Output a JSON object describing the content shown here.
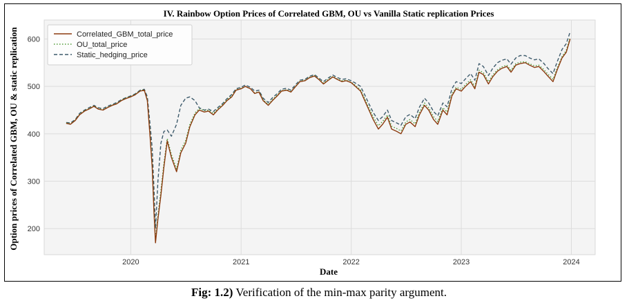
{
  "caption": {
    "label": "Fig: 1.2)",
    "text": "Verification of the min-max parity argument."
  },
  "chart_data": {
    "type": "line",
    "title": "IV. Rainbow Option Prices of Correlated GBM, OU vs Vanilla Static replication Prices",
    "xlabel": "Date",
    "ylabel": "Option prices of Correlated GBM, OU & static replication",
    "x_ticks": [
      "2020",
      "2021",
      "2022",
      "2023",
      "2024"
    ],
    "y_ticks": [
      200,
      300,
      400,
      500,
      600
    ],
    "xlim": [
      "2019-03-20",
      "2024-03-20"
    ],
    "ylim": [
      145,
      640
    ],
    "grid": true,
    "legend_position": "top-left",
    "x": [
      "2019-06-01",
      "2019-06-15",
      "2019-07-01",
      "2019-07-15",
      "2019-08-01",
      "2019-08-15",
      "2019-09-01",
      "2019-09-15",
      "2019-10-01",
      "2019-10-15",
      "2019-11-01",
      "2019-11-15",
      "2019-12-01",
      "2019-12-15",
      "2020-01-01",
      "2020-01-15",
      "2020-02-01",
      "2020-02-15",
      "2020-02-25",
      "2020-03-05",
      "2020-03-12",
      "2020-03-18",
      "2020-03-23",
      "2020-03-31",
      "2020-04-10",
      "2020-04-20",
      "2020-05-01",
      "2020-05-15",
      "2020-06-01",
      "2020-06-15",
      "2020-07-01",
      "2020-07-15",
      "2020-08-01",
      "2020-08-15",
      "2020-09-01",
      "2020-09-15",
      "2020-10-01",
      "2020-10-15",
      "2020-11-01",
      "2020-11-15",
      "2020-12-01",
      "2020-12-15",
      "2021-01-01",
      "2021-01-15",
      "2021-02-01",
      "2021-02-15",
      "2021-03-01",
      "2021-03-15",
      "2021-04-01",
      "2021-04-15",
      "2021-05-01",
      "2021-05-15",
      "2021-06-01",
      "2021-06-15",
      "2021-07-01",
      "2021-07-15",
      "2021-08-01",
      "2021-08-15",
      "2021-09-01",
      "2021-09-15",
      "2021-10-01",
      "2021-10-15",
      "2021-11-01",
      "2021-11-15",
      "2021-12-01",
      "2021-12-15",
      "2022-01-01",
      "2022-01-15",
      "2022-02-01",
      "2022-02-15",
      "2022-03-01",
      "2022-03-15",
      "2022-04-01",
      "2022-04-15",
      "2022-05-01",
      "2022-05-15",
      "2022-06-01",
      "2022-06-15",
      "2022-07-01",
      "2022-07-15",
      "2022-08-01",
      "2022-08-15",
      "2022-09-01",
      "2022-09-15",
      "2022-10-01",
      "2022-10-15",
      "2022-11-01",
      "2022-11-15",
      "2022-12-01",
      "2022-12-15",
      "2023-01-01",
      "2023-01-15",
      "2023-02-01",
      "2023-02-15",
      "2023-03-01",
      "2023-03-15",
      "2023-04-01",
      "2023-04-15",
      "2023-05-01",
      "2023-05-15",
      "2023-06-01",
      "2023-06-15",
      "2023-07-01",
      "2023-07-15",
      "2023-08-01",
      "2023-08-15",
      "2023-09-01",
      "2023-09-15",
      "2023-10-01",
      "2023-10-15",
      "2023-11-01",
      "2023-11-15",
      "2023-12-01",
      "2023-12-15",
      "2023-12-28"
    ],
    "series": [
      {
        "name": "Correlated_GBM_total_price",
        "color": "#8b3a0e",
        "dash": "solid",
        "values": [
          422,
          420,
          428,
          440,
          448,
          452,
          458,
          452,
          450,
          455,
          460,
          463,
          470,
          474,
          478,
          482,
          490,
          492,
          470,
          395,
          330,
          235,
          170,
          220,
          270,
          330,
          385,
          350,
          320,
          360,
          380,
          415,
          440,
          450,
          446,
          448,
          440,
          450,
          460,
          470,
          478,
          492,
          495,
          500,
          495,
          485,
          488,
          470,
          460,
          470,
          480,
          490,
          492,
          488,
          500,
          510,
          512,
          518,
          522,
          515,
          505,
          512,
          520,
          515,
          510,
          512,
          508,
          500,
          490,
          470,
          450,
          430,
          410,
          420,
          435,
          410,
          405,
          400,
          420,
          425,
          415,
          440,
          460,
          450,
          430,
          420,
          450,
          440,
          480,
          495,
          490,
          500,
          510,
          495,
          530,
          525,
          505,
          520,
          532,
          538,
          542,
          530,
          545,
          548,
          550,
          545,
          540,
          542,
          532,
          522,
          510,
          535,
          560,
          572,
          600
        ]
      },
      {
        "name": "OU_total_price",
        "color": "#4e9a34",
        "dash": "dotted",
        "values": [
          423,
          421,
          429,
          441,
          449,
          453,
          459,
          453,
          451,
          456,
          461,
          464,
          471,
          475,
          479,
          483,
          491,
          493,
          472,
          400,
          338,
          245,
          175,
          228,
          280,
          338,
          390,
          356,
          326,
          366,
          386,
          420,
          444,
          453,
          449,
          450,
          443,
          452,
          462,
          472,
          480,
          493,
          496,
          500,
          495,
          486,
          489,
          472,
          462,
          472,
          482,
          491,
          493,
          489,
          501,
          511,
          513,
          519,
          523,
          516,
          507,
          514,
          521,
          516,
          512,
          513,
          509,
          502,
          493,
          474,
          455,
          436,
          417,
          426,
          440,
          416,
          411,
          406,
          425,
          430,
          421,
          445,
          465,
          455,
          436,
          426,
          455,
          446,
          484,
          498,
          494,
          504,
          514,
          500,
          534,
          529,
          510,
          524,
          535,
          541,
          545,
          534,
          548,
          551,
          552,
          548,
          543,
          545,
          536,
          526,
          515,
          539,
          563,
          576,
          603
        ]
      },
      {
        "name": "Static_hedging_price",
        "color": "#3d5a6b",
        "dash": "dashed",
        "values": [
          424,
          423,
          430,
          443,
          450,
          455,
          460,
          455,
          453,
          458,
          462,
          466,
          472,
          476,
          480,
          484,
          492,
          494,
          478,
          420,
          370,
          285,
          200,
          300,
          380,
          405,
          408,
          395,
          420,
          460,
          475,
          478,
          470,
          455,
          450,
          452,
          447,
          455,
          464,
          474,
          483,
          495,
          498,
          503,
          498,
          490,
          492,
          475,
          466,
          476,
          485,
          494,
          496,
          492,
          504,
          513,
          515,
          521,
          525,
          518,
          510,
          517,
          524,
          519,
          515,
          516,
          512,
          507,
          500,
          482,
          463,
          445,
          428,
          436,
          450,
          428,
          423,
          418,
          436,
          441,
          432,
          456,
          475,
          465,
          447,
          438,
          465,
          457,
          495,
          510,
          506,
          516,
          527,
          513,
          548,
          542,
          523,
          538,
          550,
          555,
          558,
          547,
          560,
          565,
          565,
          560,
          556,
          558,
          549,
          538,
          527,
          552,
          578,
          590,
          615
        ]
      }
    ]
  }
}
